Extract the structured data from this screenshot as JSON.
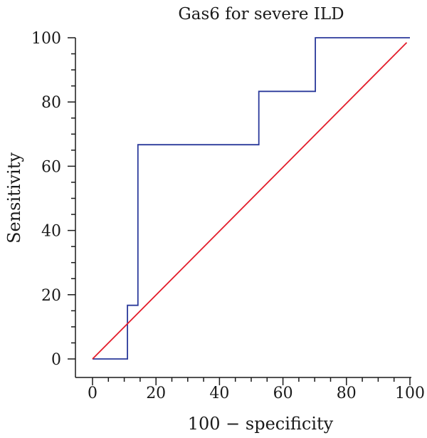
{
  "chart_data": {
    "type": "line",
    "title": "Gas6 for severe ILD",
    "xlabel": "100 − specificity",
    "ylabel": "Sensitivity",
    "xlim": [
      0,
      100
    ],
    "ylim": [
      0,
      100
    ],
    "x_major_ticks": [
      0,
      20,
      40,
      60,
      80,
      100
    ],
    "y_major_ticks": [
      0,
      20,
      40,
      60,
      80,
      100
    ],
    "minor_tick_step": 5,
    "grid": false,
    "legend": "none",
    "series": [
      {
        "color": "#2b3a9b",
        "style": "step",
        "x": [
          0,
          11,
          11,
          14.3,
          14.3,
          52.4,
          52.4,
          70.2,
          70.2,
          100
        ],
        "y": [
          0,
          0,
          16.7,
          16.7,
          66.7,
          66.7,
          83.3,
          83.3,
          100,
          100
        ]
      },
      {
        "color": "#e31d2b",
        "style": "diagonal",
        "x": [
          0,
          99
        ],
        "y": [
          0,
          98.5
        ]
      }
    ]
  }
}
